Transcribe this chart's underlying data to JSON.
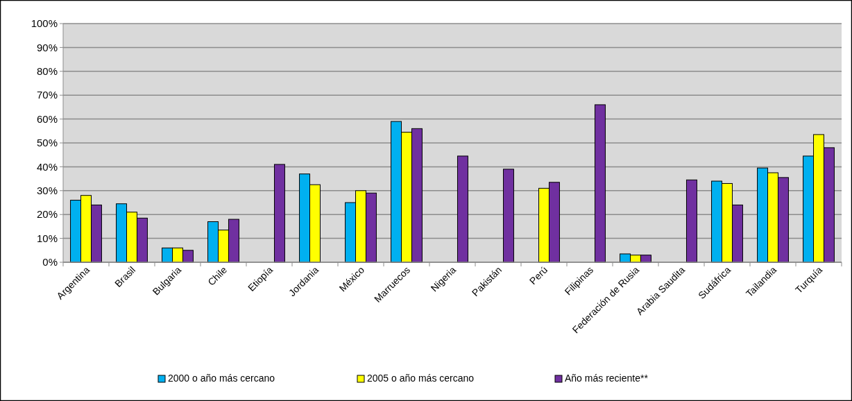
{
  "chart_data": {
    "type": "bar",
    "categories": [
      "Argentina",
      "Brasil",
      "Bulgaria",
      "Chile",
      "Etiopía",
      "Jordania",
      "México",
      "Marruecos",
      "Nigeria",
      "Pakistán",
      "Perú",
      "Filipinas",
      "Federación de Rusia",
      "Arabia Saudita",
      "Sudáfrica",
      "Tailandia",
      "Turquía"
    ],
    "series": [
      {
        "name": "2000 o año más cercano",
        "color": "#00b0f0",
        "values": [
          26,
          24.5,
          6,
          17,
          null,
          37,
          25,
          59,
          null,
          null,
          null,
          null,
          3.5,
          null,
          34,
          39.5,
          44.5
        ]
      },
      {
        "name": "2005 o año más cercano",
        "color": "#ffff00",
        "values": [
          28,
          21,
          6,
          13.5,
          null,
          32.5,
          30,
          54.5,
          null,
          null,
          31,
          null,
          3,
          null,
          33,
          37.5,
          53.5
        ]
      },
      {
        "name": "Año más reciente**",
        "color": "#7030a0",
        "values": [
          24,
          18.5,
          5,
          18,
          41,
          null,
          29,
          56,
          44.5,
          39,
          33.5,
          66,
          3,
          34.5,
          24,
          35.5,
          48
        ]
      }
    ],
    "ylim": [
      0,
      100
    ],
    "yticks": [
      {
        "value": 0,
        "label": "0%"
      },
      {
        "value": 10,
        "label": "10%"
      },
      {
        "value": 20,
        "label": "20%"
      },
      {
        "value": 30,
        "label": "30%"
      },
      {
        "value": 40,
        "label": "40%"
      },
      {
        "value": 50,
        "label": "50%"
      },
      {
        "value": 60,
        "label": "60%"
      },
      {
        "value": 70,
        "label": "70%"
      },
      {
        "value": 80,
        "label": "80%"
      },
      {
        "value": 90,
        "label": "90%"
      },
      {
        "value": 100,
        "label": "100%"
      }
    ],
    "grid": "y",
    "legend": "bottom"
  }
}
